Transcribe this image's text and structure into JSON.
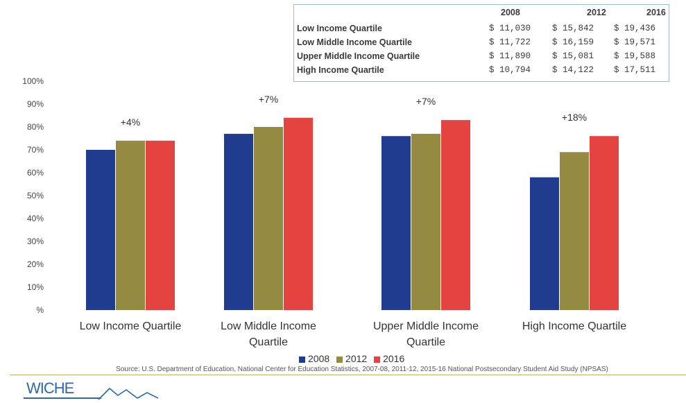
{
  "table": {
    "years": [
      "2008",
      "2012",
      "2016"
    ],
    "rows": [
      {
        "label": "Low Income Quartile",
        "values": [
          "$ 11,030",
          "$ 15,842",
          "$ 19,436"
        ]
      },
      {
        "label": "Low Middle Income Quartile",
        "values": [
          "$ 11,722",
          "$ 16,159",
          "$ 19,571"
        ]
      },
      {
        "label": "Upper Middle Income Quartile",
        "values": [
          "$ 11,890",
          "$ 15,081",
          "$ 19,588"
        ]
      },
      {
        "label": "High Income Quartile",
        "values": [
          "$ 10,794",
          "$ 14,122",
          "$ 17,511"
        ]
      }
    ]
  },
  "chart_data": {
    "type": "bar",
    "categories": [
      "Low Income Quartile",
      "Low Middle Income Quartile",
      "Upper Middle Income Quartile",
      "High Income Quartile"
    ],
    "category_lines": [
      [
        "Low Income Quartile"
      ],
      [
        "Low Middle Income",
        "Quartile"
      ],
      [
        "Upper Middle Income",
        "Quartile"
      ],
      [
        "High Income Quartile"
      ]
    ],
    "series": [
      {
        "name": "2008",
        "color": "#1f3c8f",
        "values": [
          70,
          77,
          76,
          58
        ]
      },
      {
        "name": "2012",
        "color": "#958a42",
        "values": [
          74,
          80,
          77,
          69
        ]
      },
      {
        "name": "2016",
        "color": "#e4433f",
        "values": [
          74,
          84,
          83,
          76
        ]
      }
    ],
    "annotations": [
      "+4%",
      "+7%",
      "+7%",
      "+18%"
    ],
    "yticks": [
      "100%",
      "90%",
      "80%",
      "70%",
      "60%",
      "50%",
      "40%",
      "30%",
      "20%",
      "10%",
      "%"
    ],
    "ylim": [
      0,
      100
    ],
    "legend_position": "bottom"
  },
  "source": "Source: U.S. Department of Education, National Center for Education Statistics, 2007-08, 2011-12, 2015-16 National Postsecondary Student Aid Study (NPSAS)",
  "logo": "WICHE"
}
